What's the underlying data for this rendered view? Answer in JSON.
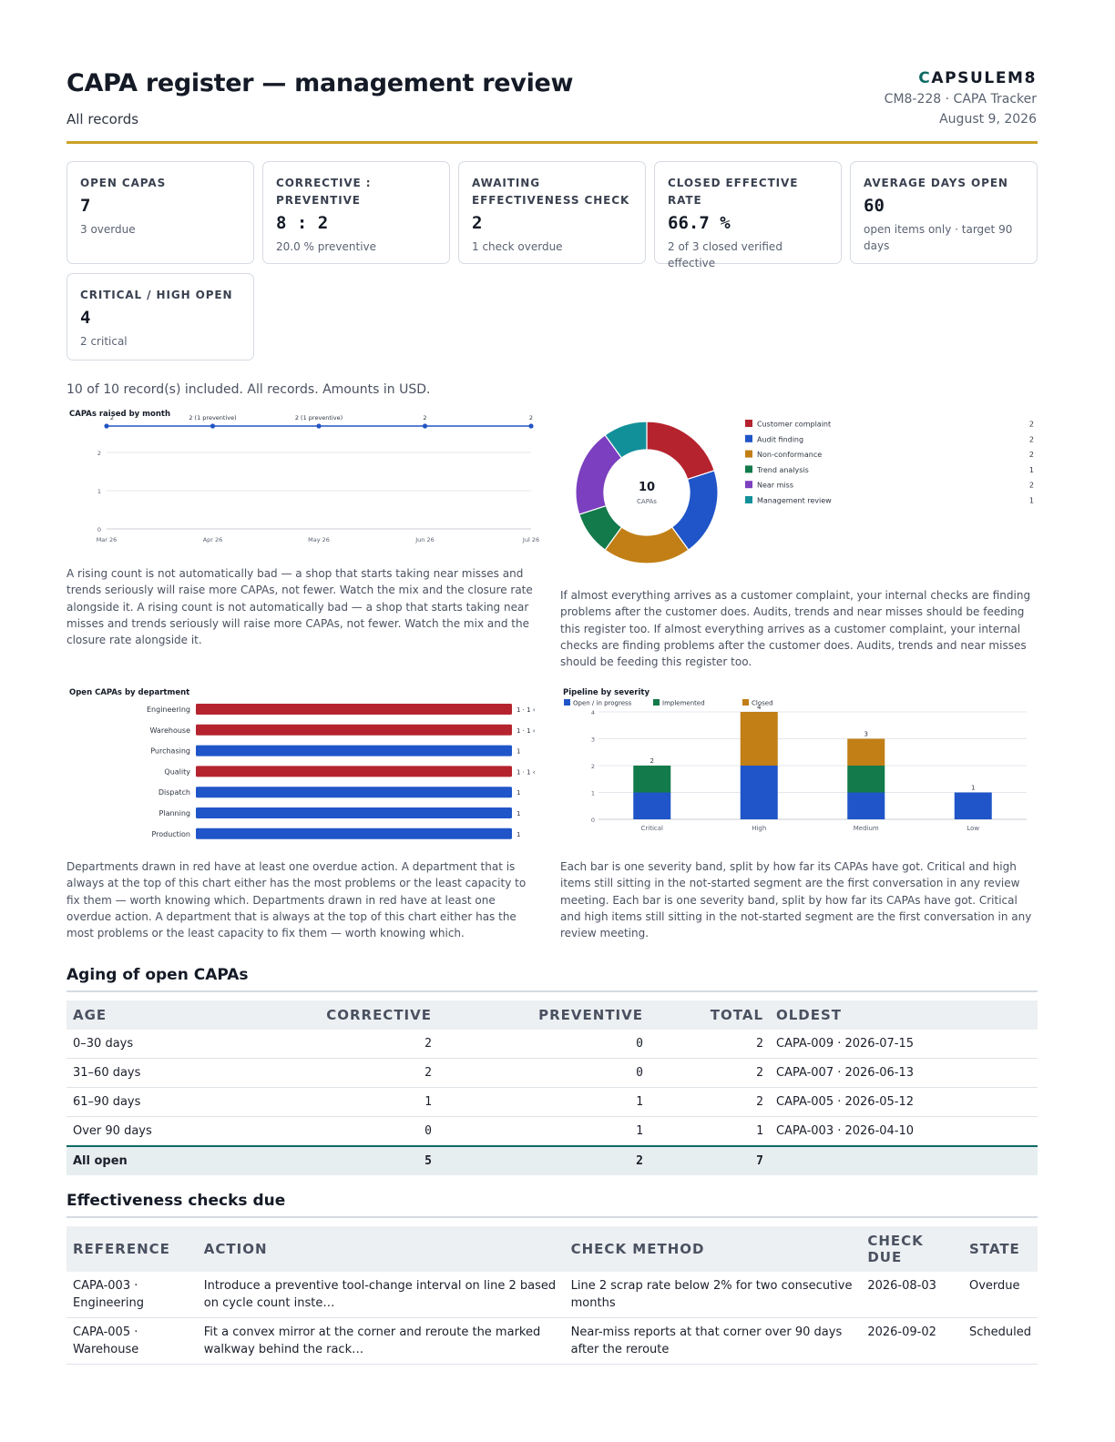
{
  "header": {
    "title": "CAPA register — management review",
    "subtitle": "All records",
    "brand_first": "C",
    "brand_rest": "APSULEM8",
    "doc_ref": "CM8-228 · CAPA Tracker",
    "date": "August 9, 2026"
  },
  "kpis": [
    {
      "label": "OPEN CAPAS",
      "value": "7",
      "note": "3 overdue"
    },
    {
      "label": "CORRECTIVE : PREVENTIVE",
      "value": "8 : 2",
      "note": "20.0 % preventive"
    },
    {
      "label": "AWAITING EFFECTIVENESS CHECK",
      "value": "2",
      "note": "1 check overdue"
    },
    {
      "label": "CLOSED EFFECTIVE RATE",
      "value": "66.7 %",
      "note": "2 of 3 closed verified effective"
    },
    {
      "label": "AVERAGE DAYS OPEN",
      "value": "60",
      "note": "open items only · target 90 days"
    },
    {
      "label": "CRITICAL / HIGH OPEN",
      "value": "4",
      "note": "2 critical"
    }
  ],
  "included_note": "10 of 10 record(s) included. All records. Amounts in USD.",
  "captions": {
    "monthly": "A rising count is not automatically bad — a shop that starts taking near misses and trends seriously will raise more CAPAs, not fewer. Watch the mix and the closure rate alongside it. A rising count is not automatically bad — a shop that starts taking near misses and trends seriously will raise more CAPAs, not fewer. Watch the mix and the closure rate alongside it.",
    "sources": "If almost everything arrives as a customer complaint, your internal checks are finding problems after the customer does. Audits, trends and near misses should be feeding this register too. If almost everything arrives as a customer complaint, your internal checks are finding problems after the customer does. Audits, trends and near misses should be feeding this register too.",
    "departments": "Departments drawn in red have at least one overdue action. A department that is always at the top of this chart either has the most problems or the least capacity to fix them — worth knowing which. Departments drawn in red have at least one overdue action. A department that is always at the top of this chart either has the most problems or the least capacity to fix them — worth knowing which.",
    "severity": "Each bar is one severity band, split by how far its CAPAs have got. Critical and high items still sitting in the not-started segment are the first conversation in any review meeting. Each bar is one severity band, split by how far its CAPAs have got. Critical and high items still sitting in the not-started segment are the first conversation in any review meeting."
  },
  "chart_data": [
    {
      "type": "line",
      "title": "CAPAs raised by month",
      "x": [
        "Mar 26",
        "Apr 26",
        "May 26",
        "Jun 26",
        "Jul 26"
      ],
      "series": [
        {
          "values": [
            2,
            2,
            2,
            2,
            2
          ]
        }
      ],
      "point_labels": [
        "2",
        "2 (1 preventive)",
        "2 (1 preventive)",
        "2",
        "2"
      ],
      "y_ticks": [
        0,
        1,
        2
      ],
      "ylim": [
        0,
        2
      ],
      "color": "#2255c4"
    },
    {
      "type": "pie",
      "center_value": "10",
      "center_label": "CAPAs",
      "slices": [
        {
          "name": "Customer complaint",
          "value": 2,
          "color": "#b5232f"
        },
        {
          "name": "Audit finding",
          "value": 2,
          "color": "#1f55c8"
        },
        {
          "name": "Non-conformance",
          "value": 2,
          "color": "#c17f16"
        },
        {
          "name": "Trend analysis",
          "value": 1,
          "color": "#137a4b"
        },
        {
          "name": "Near miss",
          "value": 2,
          "color": "#7b3fbf"
        },
        {
          "name": "Management review",
          "value": 1,
          "color": "#12909a"
        }
      ]
    },
    {
      "type": "bar",
      "title": "Open CAPAs by department",
      "categories": [
        "Engineering",
        "Warehouse",
        "Purchasing",
        "Quality",
        "Dispatch",
        "Planning",
        "Production"
      ],
      "values": [
        1,
        1,
        1,
        1,
        1,
        1,
        1
      ],
      "value_labels": [
        "1 · 1 ‹",
        "1 · 1 ‹",
        "1",
        "1 · 1 ‹",
        "1",
        "1",
        "1"
      ],
      "overdue": [
        true,
        true,
        false,
        true,
        false,
        false,
        false
      ],
      "colors": {
        "overdue": "#b5232f",
        "ok": "#1f55c8"
      }
    },
    {
      "type": "bar",
      "title": "Pipeline by severity",
      "categories": [
        "Critical",
        "High",
        "Medium",
        "Low"
      ],
      "series": [
        {
          "name": "Open / in progress",
          "values": [
            1,
            2,
            1,
            1
          ],
          "color": "#1f55c8"
        },
        {
          "name": "Implemented",
          "values": [
            1,
            0,
            1,
            0
          ],
          "color": "#137a4b"
        },
        {
          "name": "Closed",
          "values": [
            0,
            2,
            1,
            0
          ],
          "color": "#c17f16"
        }
      ],
      "totals": [
        2,
        4,
        3,
        1
      ],
      "y_ticks": [
        0,
        1,
        2,
        3,
        4
      ],
      "ylim": [
        0,
        4
      ]
    }
  ],
  "aging": {
    "title": "Aging of open CAPAs",
    "headers": [
      "AGE",
      "CORRECTIVE",
      "PREVENTIVE",
      "TOTAL",
      "OLDEST"
    ],
    "rows": [
      [
        "0–30 days",
        "2",
        "0",
        "2",
        "CAPA-009 · 2026-07-15"
      ],
      [
        "31–60 days",
        "2",
        "0",
        "2",
        "CAPA-007 · 2026-06-13"
      ],
      [
        "61–90 days",
        "1",
        "1",
        "2",
        "CAPA-005 · 2026-05-12"
      ],
      [
        "Over 90 days",
        "0",
        "1",
        "1",
        "CAPA-003 · 2026-04-10"
      ]
    ],
    "total": [
      "All open",
      "5",
      "2",
      "7",
      ""
    ]
  },
  "checks": {
    "title": "Effectiveness checks due",
    "headers": [
      "REFERENCE",
      "ACTION",
      "CHECK METHOD",
      "CHECK DUE",
      "STATE"
    ],
    "rows": [
      [
        "CAPA-003 · Engineering",
        "Introduce a preventive tool-change interval on line 2 based on cycle count inste…",
        "Line 2 scrap rate below 2% for two consecutive months",
        "2026-08-03",
        "Overdue"
      ],
      [
        "CAPA-005 · Warehouse",
        "Fit a convex mirror at the corner and reroute the marked walkway behind the rack…",
        "Near-miss reports at that corner over 90 days after the reroute",
        "2026-09-02",
        "Scheduled"
      ]
    ]
  }
}
